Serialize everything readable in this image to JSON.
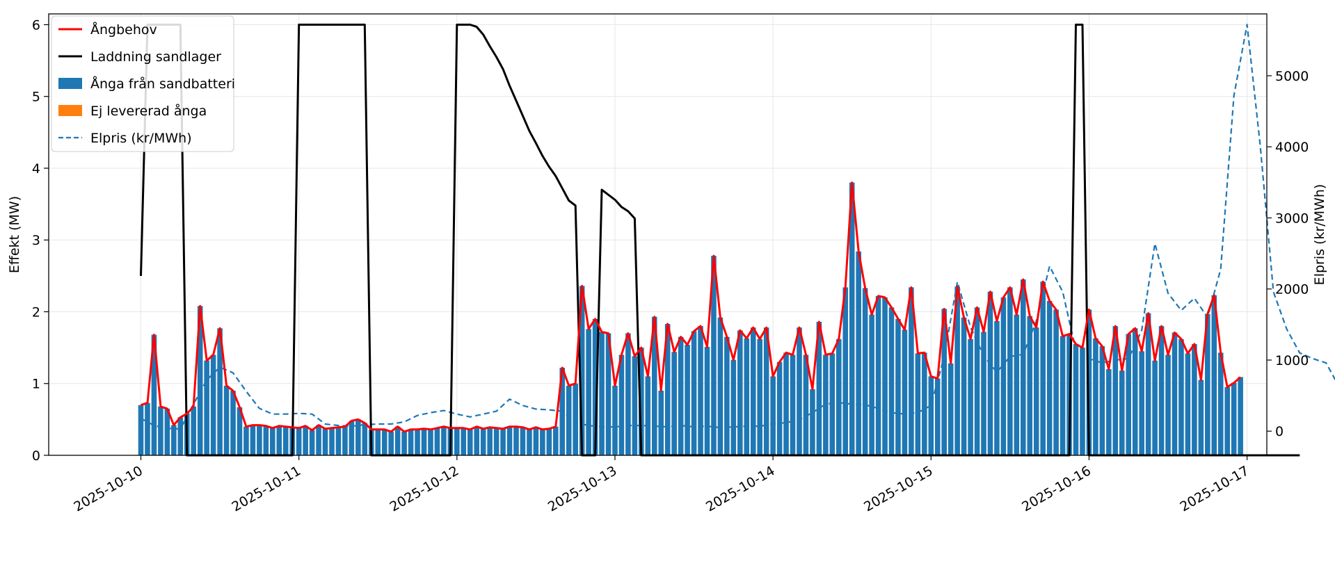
{
  "chart_data": {
    "type": "bar",
    "x_type": "time",
    "x_start": "2025-10-10T00:00",
    "x_step_hours": 1,
    "xlim": [
      "2025-10-09T10:00",
      "2025-10-17T03:00"
    ],
    "xticks": [
      "2025-10-10",
      "2025-10-11",
      "2025-10-12",
      "2025-10-13",
      "2025-10-14",
      "2025-10-15",
      "2025-10-16",
      "2025-10-17"
    ],
    "ylabel": "Effekt (MW)",
    "ylim": [
      0,
      6.15
    ],
    "yticks": [
      0,
      1,
      2,
      3,
      4,
      5,
      6
    ],
    "y2label": "Elpris (kr/MWh)",
    "y2lim": [
      -340,
      5870
    ],
    "y2ticks": [
      0,
      1000,
      2000,
      3000,
      4000,
      5000
    ],
    "grid": true,
    "legend_position": "upper-left",
    "series": [
      {
        "name": "Ångbehov",
        "kind": "line",
        "color": "#ff0000",
        "axis": "left",
        "sampling": "every 2 hours"
      },
      {
        "name": "Laddning sandlager",
        "kind": "line",
        "color": "#000000",
        "axis": "left",
        "sampling": "every 2 hours"
      },
      {
        "name": "Ånga från sandbatteri",
        "kind": "bar",
        "color": "#1f77b4",
        "axis": "left",
        "sampling": "hourly"
      },
      {
        "name": "Ej levererad ånga",
        "kind": "bar",
        "color": "#ff7f0e",
        "axis": "left",
        "sampling": "hourly"
      },
      {
        "name": "Elpris (kr/MWh)",
        "kind": "line",
        "color": "#1f77b4",
        "style": "dashed",
        "axis": "right",
        "sampling": "every 2 hours"
      }
    ],
    "demand": [
      0.7,
      0.73,
      1.68,
      0.68,
      0.65,
      0.42,
      0.53,
      0.58,
      0.68,
      2.08,
      1.32,
      1.4,
      1.77,
      0.97,
      0.9,
      0.67,
      0.4,
      0.42,
      0.42,
      0.41,
      0.38,
      0.41,
      0.4,
      0.39,
      0.38,
      0.41,
      0.35,
      0.42,
      0.37,
      0.38,
      0.39,
      0.4,
      0.48,
      0.5,
      0.45,
      0.36,
      0.36,
      0.36,
      0.33,
      0.4,
      0.33,
      0.36,
      0.36,
      0.37,
      0.36,
      0.38,
      0.4,
      0.38,
      0.38,
      0.38,
      0.36,
      0.4,
      0.37,
      0.39,
      0.38,
      0.37,
      0.4,
      0.4,
      0.39,
      0.36,
      0.39,
      0.36,
      0.37,
      0.4,
      1.22,
      0.97,
      1.0,
      2.36,
      1.76,
      1.9,
      1.72,
      1.7,
      0.97,
      1.4,
      1.7,
      1.38,
      1.5,
      1.1,
      1.93,
      0.9,
      1.83,
      1.44,
      1.65,
      1.54,
      1.73,
      1.8,
      1.51,
      2.78,
      1.92,
      1.65,
      1.33,
      1.74,
      1.63,
      1.78,
      1.62,
      1.78,
      1.1,
      1.3,
      1.43,
      1.4,
      1.78,
      1.4,
      0.92,
      1.86,
      1.4,
      1.42,
      1.62,
      2.34,
      3.8,
      2.84,
      2.33,
      1.96,
      2.22,
      2.2,
      2.06,
      1.9,
      1.75,
      2.34,
      1.42,
      1.43,
      1.1,
      1.07,
      2.04,
      1.28,
      2.35,
      1.92,
      1.62,
      2.06,
      1.72,
      2.28,
      1.87,
      2.2,
      2.34,
      1.96,
      2.45,
      1.94,
      1.78,
      2.42,
      2.15,
      2.03,
      1.66,
      1.69,
      1.55,
      1.5,
      2.03,
      1.63,
      1.52,
      1.2,
      1.8,
      1.18,
      1.69,
      1.77,
      1.45,
      1.98,
      1.32,
      1.8,
      1.4,
      1.71,
      1.62,
      1.42,
      1.55,
      1.05,
      1.97,
      2.23,
      1.43,
      0.95,
      1.01,
      1.09
    ],
    "charge": [
      2.5,
      6.0,
      6.0,
      6.0,
      6.0,
      6.0,
      6.0,
      0,
      0,
      0,
      0,
      0,
      0,
      0,
      0,
      0,
      0,
      0,
      0,
      0,
      0,
      0,
      0,
      0,
      6.0,
      6.0,
      6.0,
      6.0,
      6.0,
      6.0,
      6.0,
      6.0,
      6.0,
      6.0,
      6.0,
      0,
      0,
      0,
      0,
      0,
      0,
      0,
      0,
      0,
      0,
      0,
      0,
      0,
      6.0,
      6.0,
      6.0,
      5.97,
      5.86,
      5.7,
      5.55,
      5.38,
      5.15,
      4.94,
      4.73,
      4.52,
      4.35,
      4.17,
      4.02,
      3.89,
      3.72,
      3.55,
      3.48,
      0,
      0,
      0,
      3.7,
      3.63,
      3.56,
      3.46,
      3.4,
      3.3,
      0,
      0,
      0,
      0,
      0,
      0,
      0,
      0,
      0,
      0,
      0,
      0,
      0,
      0,
      0,
      0,
      0,
      0,
      0,
      0,
      0,
      0,
      0,
      0,
      0,
      0,
      0,
      0,
      0,
      0,
      0,
      0,
      0,
      0,
      0,
      0,
      0,
      0,
      0,
      0,
      0,
      0,
      0,
      0,
      0,
      0,
      0,
      0,
      0,
      0,
      0,
      0,
      0,
      0,
      0,
      0,
      0,
      0,
      0,
      0,
      0,
      0,
      0,
      0,
      0,
      0,
      6.0,
      6.0,
      0,
      0,
      0,
      0,
      0,
      0,
      0,
      0,
      0,
      0,
      0,
      0,
      0,
      0,
      0,
      0,
      0,
      0,
      0,
      0,
      0,
      0,
      0,
      0,
      0,
      0,
      0,
      0,
      0,
      0,
      0,
      0,
      0
    ],
    "steam_from_battery": [
      0.7,
      0.73,
      1.68,
      0.68,
      0.65,
      0.42,
      0.53,
      0.58,
      0.68,
      2.08,
      1.32,
      1.4,
      1.77,
      0.97,
      0.9,
      0.67,
      0.4,
      0.42,
      0.42,
      0.41,
      0.38,
      0.41,
      0.4,
      0.39,
      0.38,
      0.41,
      0.35,
      0.42,
      0.37,
      0.38,
      0.39,
      0.4,
      0.48,
      0.5,
      0.45,
      0.36,
      0.36,
      0.36,
      0.33,
      0.4,
      0.33,
      0.36,
      0.36,
      0.37,
      0.36,
      0.38,
      0.4,
      0.38,
      0.38,
      0.38,
      0.36,
      0.4,
      0.37,
      0.39,
      0.38,
      0.37,
      0.4,
      0.4,
      0.39,
      0.36,
      0.39,
      0.36,
      0.37,
      0.4,
      1.22,
      0.97,
      1.0,
      2.36,
      1.76,
      1.9,
      1.72,
      1.7,
      0.97,
      1.4,
      1.7,
      1.38,
      1.5,
      1.1,
      1.93,
      0.9,
      1.83,
      1.44,
      1.65,
      1.54,
      1.73,
      1.8,
      1.51,
      2.78,
      1.92,
      1.65,
      1.33,
      1.74,
      1.63,
      1.78,
      1.62,
      1.78,
      1.1,
      1.3,
      1.43,
      1.4,
      1.78,
      1.4,
      0.92,
      1.86,
      1.4,
      1.42,
      1.62,
      2.34,
      3.8,
      2.84,
      2.33,
      1.96,
      2.22,
      2.2,
      2.06,
      1.9,
      1.75,
      2.34,
      1.42,
      1.43,
      1.1,
      1.07,
      2.04,
      1.28,
      2.35,
      1.92,
      1.62,
      2.06,
      1.72,
      2.28,
      1.87,
      2.2,
      2.34,
      1.96,
      2.45,
      1.94,
      1.78,
      2.42,
      2.15,
      2.03,
      1.66,
      1.69,
      1.55,
      1.5,
      2.03,
      1.63,
      1.52,
      1.2,
      1.8,
      1.18,
      1.69,
      1.77,
      1.45,
      1.98,
      1.32,
      1.8,
      1.4,
      1.71,
      1.62,
      1.42,
      1.55,
      1.05,
      1.97,
      2.23,
      1.43,
      0.95,
      1.01,
      1.09
    ],
    "steam_not_delivered": [
      0,
      0,
      0,
      0,
      0,
      0,
      0,
      0,
      0,
      0,
      0,
      0,
      0,
      0,
      0,
      0,
      0,
      0,
      0,
      0,
      0,
      0,
      0,
      0,
      0,
      0,
      0,
      0,
      0,
      0,
      0,
      0,
      0,
      0,
      0,
      0,
      0,
      0,
      0,
      0,
      0,
      0,
      0,
      0,
      0,
      0,
      0,
      0,
      0,
      0,
      0,
      0,
      0,
      0,
      0,
      0,
      0,
      0,
      0,
      0,
      0,
      0,
      0,
      0,
      0,
      0,
      0,
      0,
      0,
      0,
      0,
      0,
      0,
      0,
      0,
      0,
      0,
      0,
      0,
      0,
      0,
      0,
      0,
      0,
      0,
      0,
      0,
      0,
      0,
      0,
      0,
      0,
      0,
      0,
      0,
      0,
      0,
      0,
      0,
      0,
      0,
      0,
      0,
      0,
      0,
      0,
      0,
      0,
      0,
      0,
      0,
      0,
      0,
      0,
      0,
      0,
      0,
      0,
      0,
      0,
      0,
      0,
      0,
      0,
      0,
      0,
      0,
      0,
      0,
      0,
      0,
      0,
      0,
      0,
      0,
      0,
      0,
      0,
      0,
      0,
      0,
      0,
      0,
      0,
      0,
      0,
      0,
      0,
      0,
      0,
      0,
      0,
      0,
      0,
      0,
      0,
      0,
      0,
      0,
      0,
      0,
      0,
      0,
      0,
      0,
      0,
      0
    ],
    "price": [
      180,
      80,
      40,
      30,
      380,
      720,
      900,
      820,
      560,
      320,
      240,
      240,
      250,
      240,
      100,
      80,
      70,
      90,
      100,
      100,
      130,
      220,
      260,
      290,
      240,
      200,
      240,
      280,
      450,
      360,
      310,
      300,
      280,
      120,
      80,
      60,
      60,
      80,
      80,
      70,
      60,
      80,
      60,
      70,
      50,
      60,
      70,
      70,
      100,
      120,
      160,
      260,
      380,
      400,
      380,
      370,
      320,
      260,
      240,
      260,
      360,
      1050,
      2100,
      1460,
      1060,
      830,
      1050,
      1080,
      1550,
      2320,
      1960,
      1140,
      1020,
      960,
      1000,
      1020,
      1420,
      2640,
      1940,
      1700,
      1870,
      1600,
      2280,
      4720,
      5720,
      4020,
      1960,
      1440,
      1100,
      1020,
      960,
      620,
      740,
      1370,
      1640,
      3080,
      2220,
      1340,
      1180,
      1090,
      1160,
      1520,
      1500,
      2260,
      1720,
      1250,
      880,
      660,
      530,
      520,
      420,
      360,
      430,
      590,
      930,
      1280,
      1040,
      800,
      700,
      660,
      580,
      540,
      860,
      1040,
      1500,
      960,
      610
    ],
    "legend": [
      "Ångbehov",
      "Laddning sandlager",
      "Ånga från sandbatteri",
      "Ej levererad ånga",
      "Elpris (kr/MWh)"
    ],
    "colors": {
      "demand": "#ff0000",
      "charge": "#000000",
      "battery": "#1f77b4",
      "not_delivered": "#ff7f0e",
      "price": "#1f77b4"
    }
  }
}
